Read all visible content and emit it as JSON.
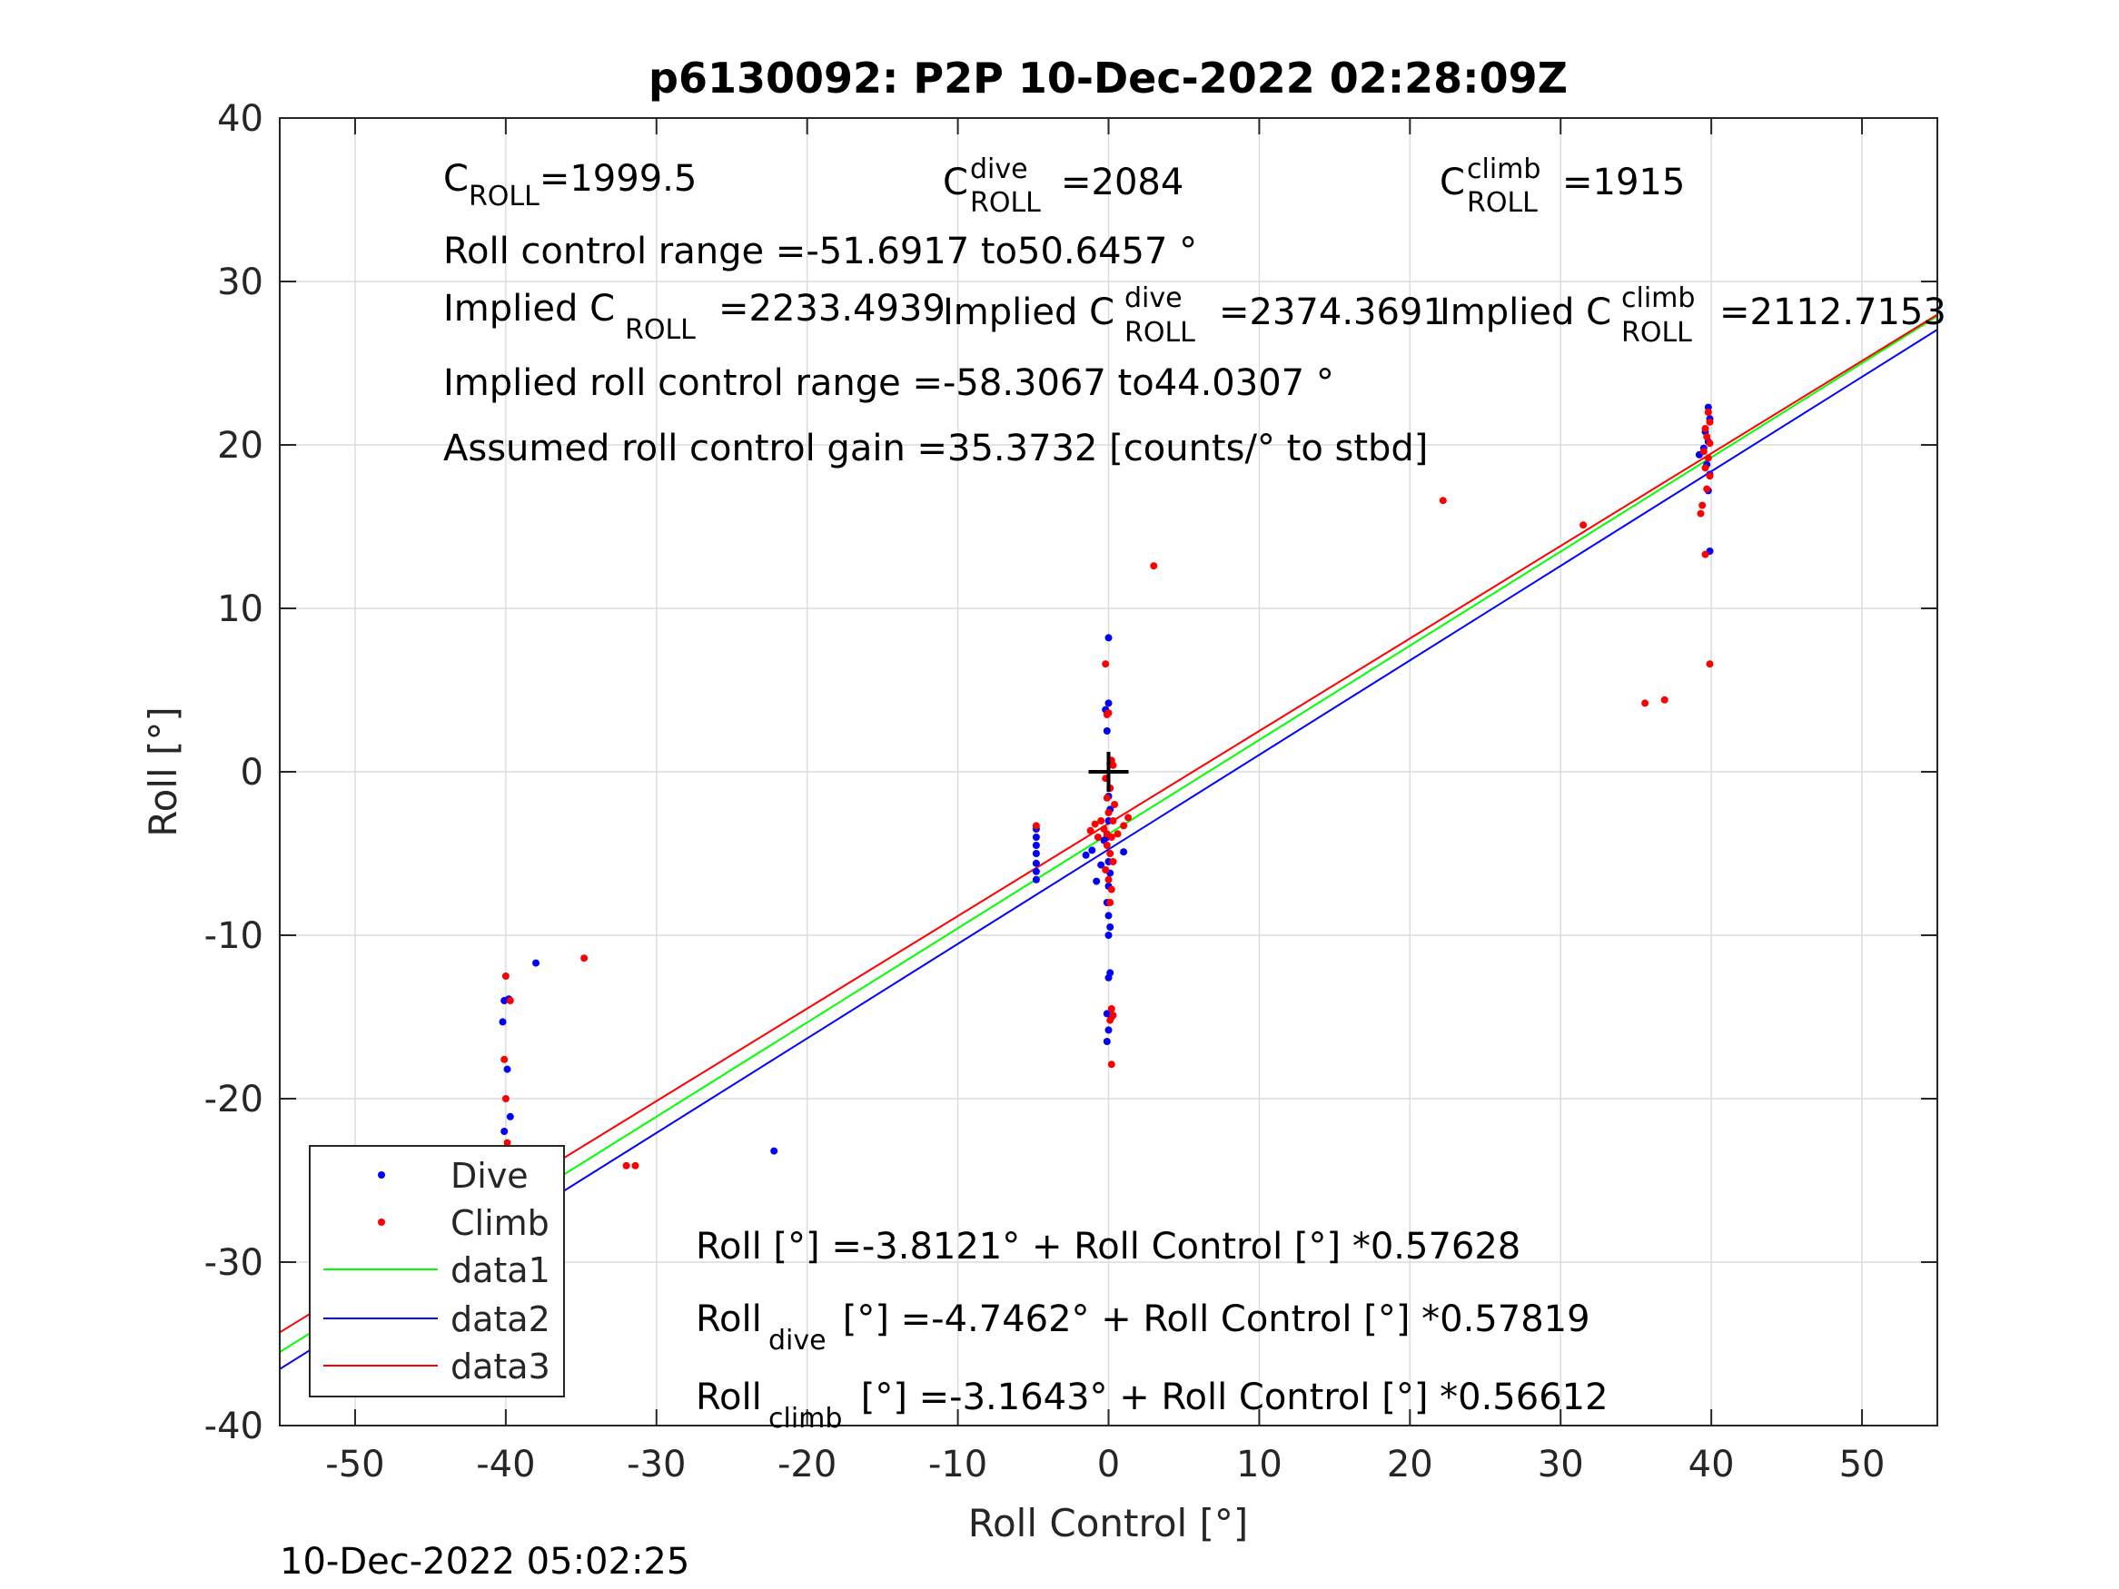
{
  "chart_data": {
    "type": "scatter",
    "title": "p6130092: P2P 10-Dec-2022 02:28:09Z",
    "xlabel": "Roll Control [°]",
    "ylabel": "Roll [°]",
    "xlim": [
      -55,
      55
    ],
    "ylim": [
      -40,
      40
    ],
    "xticks": [
      "-50",
      "-40",
      "-30",
      "-20",
      "-10",
      "0",
      "10",
      "20",
      "30",
      "40",
      "50"
    ],
    "yticks": [
      "40",
      "30",
      "20",
      "10",
      "0",
      "-10",
      "-20",
      "-30",
      "-40"
    ],
    "grid": true,
    "legend_position": "bottom-left",
    "series": [
      {
        "name": "Dive",
        "kind": "points",
        "color": "#0000ff",
        "points": [
          [
            -40.0,
            -27.5
          ],
          [
            -39.9,
            -28.2
          ],
          [
            -40.1,
            -28.8
          ],
          [
            -39.7,
            -29.3
          ],
          [
            -40.2,
            -29.9
          ],
          [
            -39.8,
            -30.1
          ],
          [
            -40.0,
            -26.9
          ],
          [
            -39.6,
            -27.8
          ],
          [
            -40.3,
            -26.4
          ],
          [
            -39.9,
            -25.9
          ],
          [
            -39.5,
            -26.8
          ],
          [
            -40.0,
            -24.5
          ],
          [
            -39.8,
            -23.2
          ],
          [
            -40.1,
            -22.0
          ],
          [
            -39.7,
            -21.1
          ],
          [
            -39.9,
            -18.2
          ],
          [
            -40.2,
            -15.3
          ],
          [
            -40.1,
            -14.0
          ],
          [
            -39.8,
            -13.9
          ],
          [
            -38.0,
            -11.7
          ],
          [
            -39.6,
            -29.6
          ],
          [
            -40.2,
            -28.6
          ],
          [
            -39.4,
            -27.3
          ],
          [
            -40.4,
            -27.9
          ],
          [
            -22.2,
            -23.2
          ],
          [
            -4.8,
            -3.5
          ],
          [
            -4.8,
            -4.0
          ],
          [
            -4.8,
            -4.5
          ],
          [
            -4.8,
            -5.0
          ],
          [
            -4.8,
            -5.6
          ],
          [
            -4.8,
            -6.1
          ],
          [
            -4.8,
            -6.6
          ],
          [
            -1.5,
            -5.1
          ],
          [
            -1.1,
            -4.8
          ],
          [
            -0.8,
            -6.7
          ],
          [
            -0.5,
            -5.7
          ],
          [
            -0.3,
            -4.2
          ],
          [
            0.0,
            8.2
          ],
          [
            0.0,
            4.2
          ],
          [
            -0.2,
            3.8
          ],
          [
            -0.1,
            2.5
          ],
          [
            0.1,
            0.5
          ],
          [
            0.0,
            -1.5
          ],
          [
            0.1,
            -2.3
          ],
          [
            0.0,
            -3.0
          ],
          [
            -0.1,
            -4.0
          ],
          [
            0.0,
            -5.5
          ],
          [
            0.1,
            -6.2
          ],
          [
            0.0,
            -7.0
          ],
          [
            -0.1,
            -8.0
          ],
          [
            0.0,
            -8.8
          ],
          [
            0.1,
            -9.5
          ],
          [
            0.0,
            -10.0
          ],
          [
            0.1,
            -12.3
          ],
          [
            0.0,
            -12.6
          ],
          [
            -0.1,
            -14.8
          ],
          [
            0.2,
            -15.0
          ],
          [
            0.0,
            -15.8
          ],
          [
            -0.1,
            -16.5
          ],
          [
            1.0,
            -4.9
          ],
          [
            39.8,
            22.3
          ],
          [
            39.9,
            21.6
          ],
          [
            39.6,
            20.8
          ],
          [
            39.8,
            20.2
          ],
          [
            39.5,
            19.8
          ],
          [
            39.2,
            19.4
          ],
          [
            39.7,
            18.8
          ],
          [
            39.9,
            18.2
          ],
          [
            39.8,
            17.2
          ],
          [
            39.9,
            13.5
          ]
        ]
      },
      {
        "name": "Climb",
        "kind": "points",
        "color": "#ff0000",
        "points": [
          [
            -40.0,
            -12.5
          ],
          [
            -40.1,
            -17.6
          ],
          [
            -40.0,
            -20.0
          ],
          [
            -39.9,
            -22.7
          ],
          [
            -39.8,
            -24.0
          ],
          [
            -40.0,
            -24.9
          ],
          [
            -39.8,
            -25.6
          ],
          [
            -39.5,
            -26.4
          ],
          [
            -40.2,
            -26.9
          ],
          [
            -39.9,
            -27.3
          ],
          [
            -39.6,
            -27.8
          ],
          [
            -39.3,
            -26.6
          ],
          [
            -39.0,
            -25.9
          ],
          [
            -39.6,
            -25.3
          ],
          [
            -39.7,
            -14.0
          ],
          [
            -34.8,
            -11.4
          ],
          [
            -32.0,
            -24.1
          ],
          [
            -31.4,
            -24.1
          ],
          [
            -4.8,
            -3.3
          ],
          [
            -1.2,
            -3.6
          ],
          [
            -0.9,
            -3.2
          ],
          [
            -0.7,
            -4.0
          ],
          [
            -0.5,
            -3.0
          ],
          [
            0.2,
            0.7
          ],
          [
            0.3,
            0.4
          ],
          [
            -0.2,
            -0.4
          ],
          [
            0.1,
            -1.0
          ],
          [
            -0.1,
            -1.6
          ],
          [
            0.4,
            -2.0
          ],
          [
            0.0,
            -2.5
          ],
          [
            0.3,
            -3.0
          ],
          [
            -0.3,
            -3.5
          ],
          [
            0.2,
            -4.0
          ],
          [
            -0.1,
            -4.5
          ],
          [
            0.1,
            -5.0
          ],
          [
            0.3,
            -5.5
          ],
          [
            -0.2,
            -6.0
          ],
          [
            0.0,
            -6.6
          ],
          [
            0.2,
            -7.2
          ],
          [
            0.1,
            -8.0
          ],
          [
            -0.1,
            -3.8
          ],
          [
            -0.2,
            6.6
          ],
          [
            0.0,
            3.6
          ],
          [
            -0.1,
            3.5
          ],
          [
            0.2,
            -14.5
          ],
          [
            0.3,
            -14.9
          ],
          [
            0.1,
            -15.2
          ],
          [
            0.2,
            -17.9
          ],
          [
            1.3,
            -2.8
          ],
          [
            1.0,
            -3.3
          ],
          [
            0.6,
            -3.8
          ],
          [
            3.0,
            12.6
          ],
          [
            22.2,
            16.6
          ],
          [
            31.5,
            15.1
          ],
          [
            39.8,
            22.0
          ],
          [
            39.9,
            21.4
          ],
          [
            39.6,
            21.0
          ],
          [
            39.7,
            20.5
          ],
          [
            39.9,
            20.1
          ],
          [
            39.5,
            19.6
          ],
          [
            39.8,
            19.2
          ],
          [
            39.6,
            18.6
          ],
          [
            39.9,
            18.1
          ],
          [
            39.7,
            17.3
          ],
          [
            39.4,
            16.3
          ],
          [
            39.3,
            15.8
          ],
          [
            39.6,
            13.3
          ],
          [
            39.9,
            6.6
          ],
          [
            35.6,
            4.2
          ],
          [
            36.9,
            4.4
          ]
        ]
      },
      {
        "name": "data1",
        "kind": "line",
        "color": "#00ff00",
        "x": [
          -55,
          55
        ],
        "intercept": -3.8121,
        "slope": 0.57628
      },
      {
        "name": "data2",
        "kind": "line",
        "color": "#0000ff",
        "x": [
          -55,
          55
        ],
        "intercept": -4.7462,
        "slope": 0.57819
      },
      {
        "name": "data3",
        "kind": "line",
        "color": "#ff0000",
        "x": [
          -55,
          55
        ],
        "intercept": -3.1643,
        "slope": 0.56612
      }
    ],
    "center_marker": {
      "x": 0,
      "y": 0,
      "color": "#000000"
    },
    "annotations": {
      "c_roll": {
        "base": "C",
        "sub": "ROLL",
        "value": "=1999.5"
      },
      "c_roll_dive": {
        "base": "C",
        "sup": "dive",
        "sub": "ROLL",
        "value": "=2084"
      },
      "c_roll_climb": {
        "base": "C",
        "sup": "climb",
        "sub": "ROLL",
        "value": "=1915"
      },
      "roll_control_range": "Roll control range =-51.6917 to50.6457 °",
      "implied_c_roll": {
        "base": "Implied C",
        "sub": "ROLL",
        "value": "=2233.4939"
      },
      "implied_c_roll_dive": {
        "base": "Implied C",
        "sup": "dive",
        "sub": "ROLL",
        "value": "=2374.3691"
      },
      "implied_c_roll_climb": {
        "base": "Implied C",
        "sup": "climb",
        "sub": "ROLL",
        "value": "=2112.7153"
      },
      "implied_roll_control_range": "Implied roll control range =-58.3067 to44.0307 °",
      "assumed_gain": "Assumed roll control gain =35.3732 [counts/° to stbd]",
      "fit_all": "Roll [°] =-3.8121° + Roll Control [°] *0.57628",
      "fit_dive": {
        "base": "Roll",
        "sub": "dive",
        "rest": " [°] =-4.7462° + Roll Control [°] *0.57819"
      },
      "fit_climb": {
        "base": "Roll",
        "sub": "climb",
        "rest": " [°] =-3.1643° + Roll Control [°] *0.56612"
      }
    }
  },
  "footer_timestamp": "10-Dec-2022 05:02:25"
}
